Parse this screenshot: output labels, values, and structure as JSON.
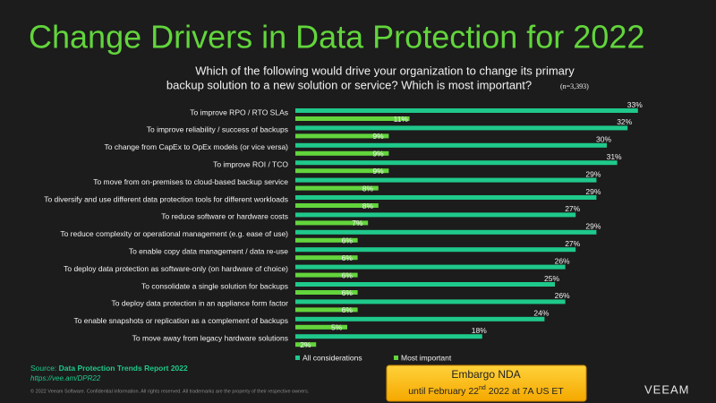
{
  "chart_data": {
    "type": "bar",
    "title": "Change Drivers in Data Protection for 2022",
    "subtitle": [
      "Which of the following would drive your organization to change its primary",
      "backup solution to a new solution or service?  Which is most important?"
    ],
    "note": "(n=3,393)",
    "categories": [
      "To improve RPO / RTO SLAs",
      "To improve reliability / success of backups",
      "To change from CapEx to OpEx models (or vice versa)",
      "To improve ROI / TCO",
      "To move from on-premises to cloud-based backup service",
      "To diversify and use different data protection tools for different workloads",
      "To reduce software or hardware costs",
      "To reduce complexity or operational management (e.g. ease of use)",
      "To enable copy data management / data re-use",
      "To deploy data protection as software-only (on hardware of choice)",
      "To consolidate a single solution for backups",
      "To deploy data protection in an appliance form factor",
      "To enable snapshots or replication as a complement of backups",
      "To move away from legacy hardware solutions"
    ],
    "series": [
      {
        "name": "All considerations",
        "color": "#1fc98b",
        "values": [
          33,
          32,
          30,
          31,
          29,
          29,
          27,
          29,
          27,
          26,
          25,
          26,
          24,
          18
        ],
        "value_labels": [
          "33%",
          "32%",
          "30%",
          "31%",
          "29%",
          "29%",
          "27%",
          "29%",
          "27%",
          "26%",
          "25%",
          "26%",
          "24%",
          "18%"
        ]
      },
      {
        "name": "Most important",
        "color": "#62d53c",
        "values": [
          11,
          9,
          9,
          9,
          8,
          8,
          7,
          6,
          6,
          6,
          6,
          6,
          5,
          2
        ],
        "value_labels": [
          "11%",
          "9%",
          "9%",
          "9%",
          "8%",
          "8%",
          "7%",
          "6%",
          "6%",
          "6%",
          "6%",
          "6%",
          "5%",
          "2%"
        ]
      }
    ]
  },
  "footer": {
    "source_label": "Source:",
    "source": "Data Protection Trends Report 2022",
    "url": "https://vee.am/DPR22",
    "copyright": "© 2022 Veeam Software. Confidential information. All rights reserved. All trademarks are the property of their respective owners.",
    "embargo": [
      "Embargo NDA",
      "until February 22",
      "nd",
      " 2022 at 7A US ET"
    ],
    "logo": "VEEAM"
  }
}
